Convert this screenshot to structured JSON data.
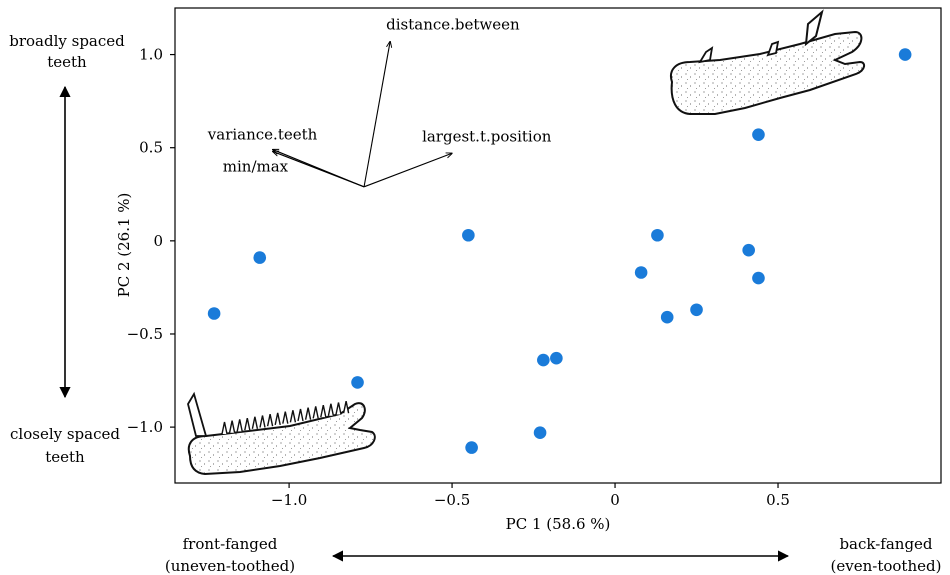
{
  "chart_data": {
    "type": "scatter",
    "xlabel": "PC 1 (58.6 %)",
    "ylabel": "PC 2 (26.1 %)",
    "xlim": [
      -1.35,
      1.0
    ],
    "ylim": [
      -1.3,
      1.25
    ],
    "xticks": [
      -1.0,
      -0.5,
      0,
      0.5
    ],
    "xtick_labels": [
      "−1.0",
      "−0.5",
      "0",
      "0.5"
    ],
    "yticks": [
      -1.0,
      -0.5,
      0,
      0.5,
      1.0
    ],
    "ytick_labels": [
      "−1.0",
      "−0.5",
      "0",
      "0.5",
      "1.0"
    ],
    "grid": false,
    "point_color": "#1a7bd9",
    "points": [
      {
        "x": -1.23,
        "y": -0.39
      },
      {
        "x": -1.09,
        "y": -0.09
      },
      {
        "x": -0.79,
        "y": -0.76
      },
      {
        "x": -0.45,
        "y": 0.03
      },
      {
        "x": -0.44,
        "y": -1.11
      },
      {
        "x": -0.23,
        "y": -1.03
      },
      {
        "x": -0.22,
        "y": -0.64
      },
      {
        "x": -0.18,
        "y": -0.63
      },
      {
        "x": 0.08,
        "y": -0.17
      },
      {
        "x": 0.13,
        "y": 0.03
      },
      {
        "x": 0.16,
        "y": -0.41
      },
      {
        "x": 0.25,
        "y": -0.37
      },
      {
        "x": 0.41,
        "y": -0.05
      },
      {
        "x": 0.44,
        "y": -0.2
      },
      {
        "x": 0.44,
        "y": 0.57
      },
      {
        "x": 0.89,
        "y": 1.0
      }
    ],
    "loadings": {
      "origin": {
        "x": -0.77,
        "y": 0.29
      },
      "vectors": [
        {
          "label": "distance.between",
          "x": -0.69,
          "y": 1.07
        },
        {
          "label": "largest.t.position",
          "x": -0.5,
          "y": 0.47
        },
        {
          "label": "variance.teeth",
          "x": -1.05,
          "y": 0.49
        },
        {
          "label": "min/max",
          "x": -1.05,
          "y": 0.48
        }
      ]
    }
  },
  "annotations": {
    "top_left_line1": "broadly spaced",
    "top_left_line2": "teeth",
    "bottom_left_line1": "closely spaced",
    "bottom_left_line2": "teeth",
    "bottom_left_x_line1": "front-fanged",
    "bottom_left_x_line2": "(uneven-toothed)",
    "bottom_right_x_line1": "back-fanged",
    "bottom_right_x_line2": "(even-toothed)"
  }
}
